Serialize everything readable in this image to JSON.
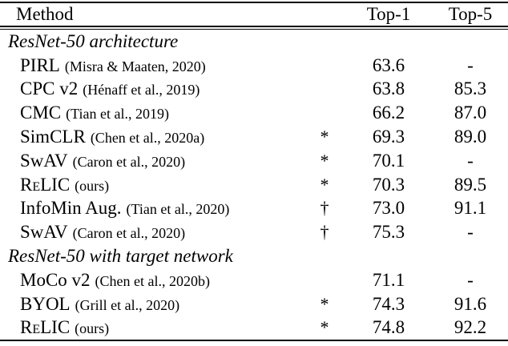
{
  "page": {
    "background_color": "#ffffff",
    "text_color": "#010101",
    "description": "Paper results table: ImageNet linear-evaluation accuracy of self-supervised methods"
  },
  "chart_data": {
    "type": "table",
    "columns": [
      "Method",
      "marker",
      "Top-1",
      "Top-5"
    ],
    "sections": [
      {
        "title": "ResNet-50 architecture",
        "rows": [
          [
            "PIRL (Misra & Maaten, 2020)",
            "",
            63.6,
            null
          ],
          [
            "CPC v2 (Hénaff et al., 2019)",
            "",
            63.8,
            85.3
          ],
          [
            "CMC (Tian et al., 2019)",
            "",
            66.2,
            87.0
          ],
          [
            "SimCLR (Chen et al., 2020a)",
            "*",
            69.3,
            89.0
          ],
          [
            "SwAV (Caron et al., 2020)",
            "*",
            70.1,
            null
          ],
          [
            "ReLIC (ours)",
            "*",
            70.3,
            89.5
          ],
          [
            "InfoMin Aug. (Tian et al., 2020)",
            "†",
            73.0,
            91.1
          ],
          [
            "SwAV (Caron et al., 2020)",
            "†",
            75.3,
            null
          ]
        ]
      },
      {
        "title": "ResNet-50 with target network",
        "rows": [
          [
            "MoCo v2 (Chen et al., 2020b)",
            "",
            71.1,
            null
          ],
          [
            "BYOL (Grill et al., 2020)",
            "*",
            74.3,
            91.6
          ],
          [
            "ReLIC (ours)",
            "*",
            74.8,
            92.2
          ]
        ]
      }
    ]
  },
  "table": {
    "header": {
      "method": "Method",
      "marker": "",
      "top1": "Top-1",
      "top5": "Top-5"
    },
    "sections": [
      {
        "title": "ResNet-50 architecture",
        "rows": [
          {
            "method": "PIRL",
            "cite": "(Misra & Maaten, 2020)",
            "marker": "",
            "top1": "63.6",
            "top5": "-"
          },
          {
            "method": "CPC v2",
            "cite": "(Hénaff et al., 2019)",
            "marker": "",
            "top1": "63.8",
            "top5": "85.3"
          },
          {
            "method": "CMC",
            "cite": "(Tian et al., 2019)",
            "marker": "",
            "top1": "66.2",
            "top5": "87.0"
          },
          {
            "method": "SimCLR",
            "cite": "(Chen et al., 2020a)",
            "marker": "*",
            "top1": "69.3",
            "top5": "89.0"
          },
          {
            "method": "SwAV",
            "cite": "(Caron et al., 2020)",
            "marker": "*",
            "top1": "70.1",
            "top5": "-"
          },
          {
            "method": "ReLIC",
            "cite": "(ours)",
            "marker": "*",
            "top1": "70.3",
            "top5": "89.5"
          },
          {
            "method": "InfoMin Aug.",
            "cite": "(Tian et al., 2020)",
            "marker": "†",
            "top1": "73.0",
            "top5": "91.1"
          },
          {
            "method": "SwAV",
            "cite": "(Caron et al., 2020)",
            "marker": "†",
            "top1": "75.3",
            "top5": "-"
          }
        ]
      },
      {
        "title": "ResNet-50 with target network",
        "rows": [
          {
            "method": "MoCo v2",
            "cite": "(Chen et al., 2020b)",
            "marker": "",
            "top1": "71.1",
            "top5": "-"
          },
          {
            "method": "BYOL",
            "cite": "(Grill et al., 2020)",
            "marker": "*",
            "top1": "74.3",
            "top5": "91.6"
          },
          {
            "method": "ReLIC",
            "cite": "(ours)",
            "marker": "*",
            "top1": "74.8",
            "top5": "92.2"
          }
        ]
      }
    ]
  }
}
